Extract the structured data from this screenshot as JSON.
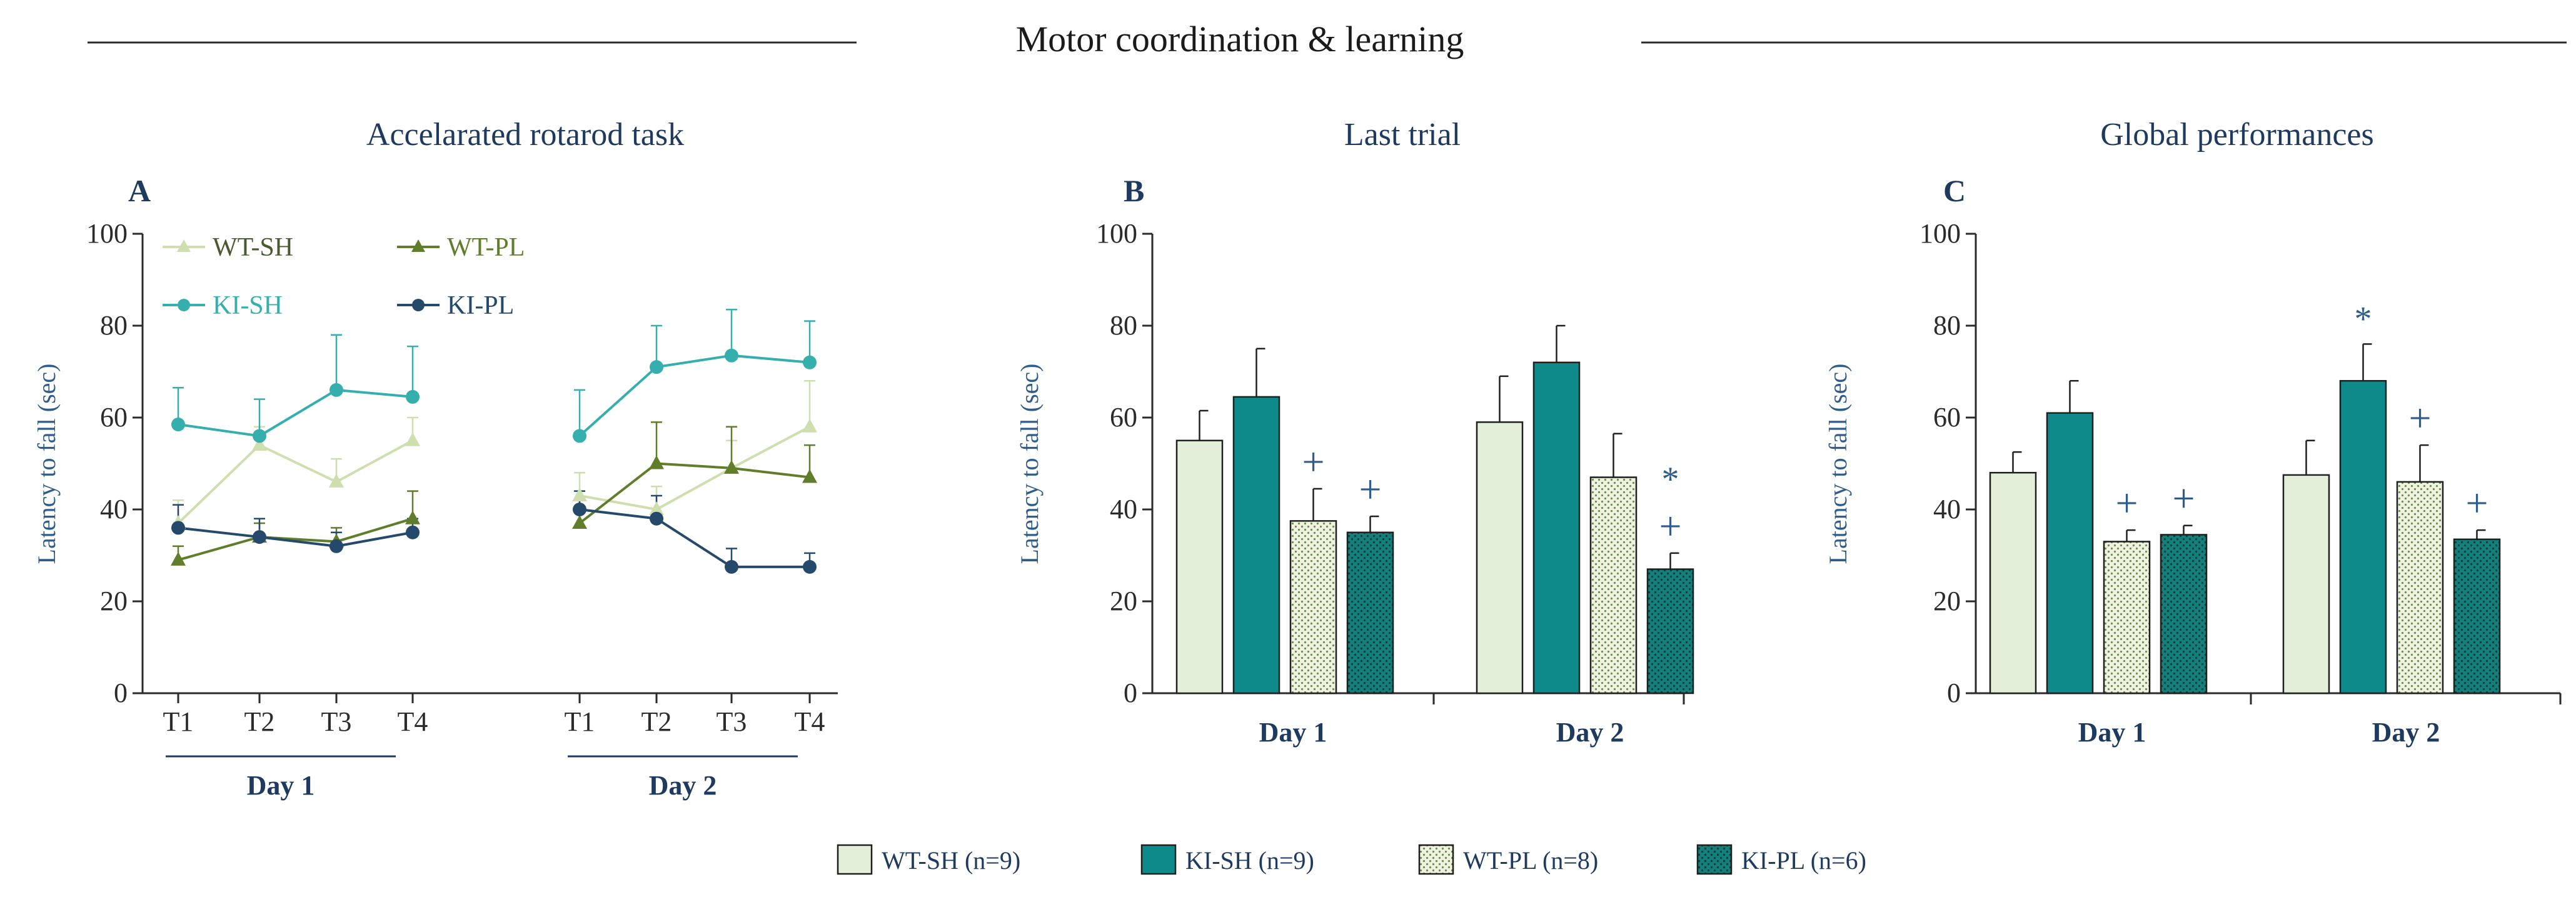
{
  "title": "Motor coordination & learning",
  "colors": {
    "title_text": "#1a1a1a",
    "panel_title": "#1e3a5f",
    "axis": "#2b2b2b",
    "wt_sh_fill": "#e3efd9",
    "ki_sh_fill": "#0f8a8a",
    "wt_pl_fill": "#eef3df",
    "ki_pl_fill": "#13807c",
    "wt_sh_line": "#cfdeae",
    "wt_pl_line": "#5f7d2a",
    "ki_sh_line": "#35aeae",
    "ki_pl_line": "#24496b",
    "annotation": "#2f5c8a"
  },
  "legend": {
    "items": [
      {
        "key": "wt_sh",
        "label": "WT-SH (n=9)"
      },
      {
        "key": "ki_sh",
        "label": "KI-SH (n=9)"
      },
      {
        "key": "wt_pl",
        "label": "WT-PL (n=8)"
      },
      {
        "key": "ki_pl",
        "label": "KI-PL (n=6)"
      }
    ]
  },
  "chart_data": [
    {
      "panel": "A",
      "type": "line",
      "title": "Accelarated rotarod task",
      "ylabel": "Latency  to fall  (sec)",
      "ylim": [
        0,
        100
      ],
      "yticks": [
        0,
        20,
        40,
        60,
        80,
        100
      ],
      "days": [
        {
          "label": "Day 1",
          "trials": [
            "T1",
            "T2",
            "T3",
            "T4"
          ]
        },
        {
          "label": "Day 2",
          "trials": [
            "T1",
            "T2",
            "T3",
            "T4"
          ]
        }
      ],
      "series": [
        {
          "key": "wt_sh",
          "name": "WT-SH",
          "marker": "triangle",
          "day1": [
            37,
            54,
            46,
            55
          ],
          "day2": [
            43,
            40,
            49,
            58
          ],
          "err1": [
            5,
            4,
            5,
            5
          ],
          "err2": [
            5,
            5,
            6,
            10
          ]
        },
        {
          "key": "wt_pl",
          "name": "WT-PL",
          "marker": "triangle",
          "day1": [
            29,
            34,
            33,
            38
          ],
          "day2": [
            37,
            50,
            49,
            47
          ],
          "err1": [
            3,
            3,
            3,
            6
          ],
          "err2": [
            5,
            9,
            9,
            7
          ]
        },
        {
          "key": "ki_sh",
          "name": "KI-SH",
          "marker": "circle",
          "day1": [
            58.5,
            56,
            66,
            64.5
          ],
          "day2": [
            56,
            71,
            73.5,
            72
          ],
          "err1": [
            8,
            8,
            12,
            11
          ],
          "err2": [
            10,
            9,
            10,
            9
          ]
        },
        {
          "key": "ki_pl",
          "name": "KI-PL",
          "marker": "circle",
          "day1": [
            36,
            34,
            32,
            35
          ],
          "day2": [
            40,
            38,
            27.5,
            27.5
          ],
          "err1": [
            5,
            4,
            3,
            3
          ],
          "err2": [
            4,
            5,
            4,
            3
          ]
        }
      ]
    },
    {
      "panel": "B",
      "type": "bar",
      "title": "Last trial",
      "ylabel": "Latency  to fall  (sec)",
      "ylim": [
        0,
        100
      ],
      "yticks": [
        0,
        20,
        40,
        60,
        80,
        100
      ],
      "categories": [
        "Day 1",
        "Day 2"
      ],
      "series": [
        {
          "key": "wt_sh",
          "name": "WT-SH",
          "values": [
            55,
            59
          ],
          "errors": [
            6.5,
            10
          ]
        },
        {
          "key": "ki_sh",
          "name": "KI-SH",
          "values": [
            64.5,
            72
          ],
          "errors": [
            10.5,
            8
          ]
        },
        {
          "key": "wt_pl",
          "name": "WT-PL",
          "values": [
            37.5,
            47
          ],
          "errors": [
            7,
            9.5
          ]
        },
        {
          "key": "ki_pl",
          "name": "KI-PL",
          "values": [
            35,
            27
          ],
          "errors": [
            3.5,
            3.5
          ]
        }
      ],
      "annotations": [
        {
          "category": 0,
          "series": 2,
          "text": "+"
        },
        {
          "category": 0,
          "series": 3,
          "text": "+"
        },
        {
          "category": 1,
          "series": 3,
          "text": "*"
        },
        {
          "category": 1,
          "series": 3,
          "text": "+"
        }
      ]
    },
    {
      "panel": "C",
      "type": "bar",
      "title": "Global performances",
      "ylabel": "Latency  to fall  (sec)",
      "ylim": [
        0,
        100
      ],
      "yticks": [
        0,
        20,
        40,
        60,
        80,
        100
      ],
      "categories": [
        "Day 1",
        "Day 2"
      ],
      "series": [
        {
          "key": "wt_sh",
          "name": "WT-SH",
          "values": [
            48,
            47.5
          ],
          "errors": [
            4.5,
            7.5
          ]
        },
        {
          "key": "ki_sh",
          "name": "KI-SH",
          "values": [
            61,
            68
          ],
          "errors": [
            7,
            8
          ]
        },
        {
          "key": "wt_pl",
          "name": "WT-PL",
          "values": [
            33,
            46
          ],
          "errors": [
            2.5,
            8
          ]
        },
        {
          "key": "ki_pl",
          "name": "KI-PL",
          "values": [
            34.5,
            33.5
          ],
          "errors": [
            2,
            2
          ]
        }
      ],
      "annotations": [
        {
          "category": 0,
          "series": 2,
          "text": "+"
        },
        {
          "category": 0,
          "series": 3,
          "text": "+"
        },
        {
          "category": 1,
          "series": 1,
          "text": "*"
        },
        {
          "category": 1,
          "series": 2,
          "text": "+"
        },
        {
          "category": 1,
          "series": 3,
          "text": "+"
        }
      ]
    }
  ]
}
